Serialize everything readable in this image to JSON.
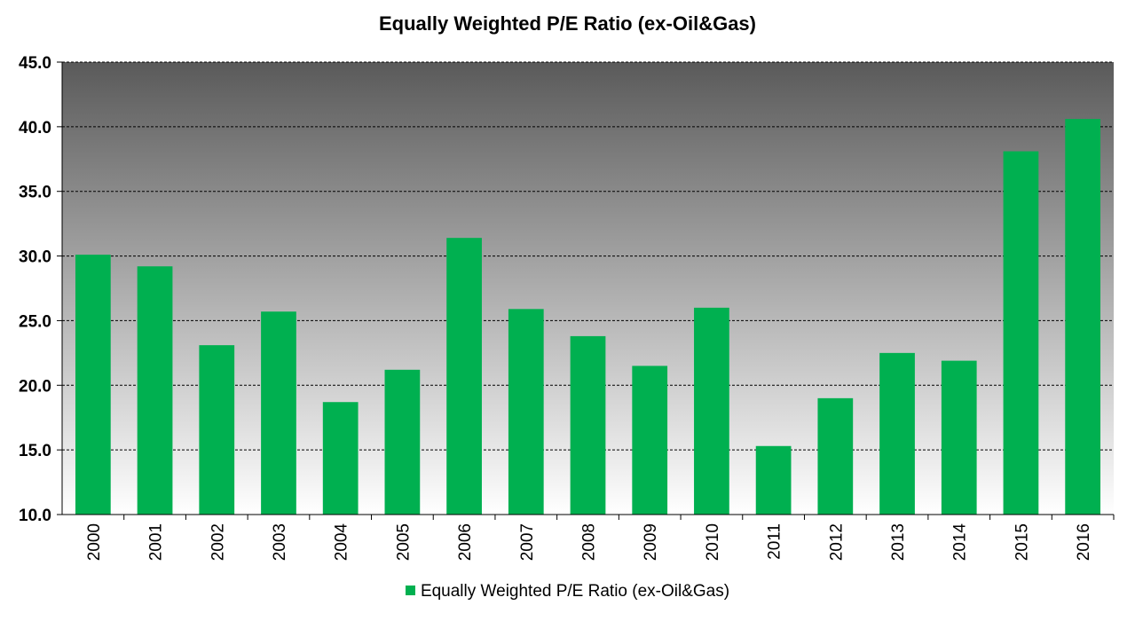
{
  "colors": {
    "bar": "#00B050",
    "plot_top": "#5a5a5a",
    "plot_bottom": "#ffffff",
    "grid": "#000000"
  },
  "chart_data": {
    "type": "bar",
    "title": "Equally Weighted P/E Ratio (ex-Oil&Gas)",
    "xlabel": "",
    "ylabel": "",
    "categories": [
      "2000",
      "2001",
      "2002",
      "2003",
      "2004",
      "2005",
      "2006",
      "2007",
      "2008",
      "2009",
      "2010",
      "2011",
      "2012",
      "2013",
      "2014",
      "2015",
      "2016"
    ],
    "series": [
      {
        "name": "Equally Weighted P/E Ratio (ex-Oil&Gas)",
        "values": [
          30.1,
          29.2,
          23.1,
          25.7,
          18.7,
          21.2,
          31.4,
          25.9,
          23.8,
          21.5,
          26.0,
          15.3,
          19.0,
          22.5,
          21.9,
          38.1,
          40.6
        ]
      }
    ],
    "ylim": [
      10,
      45
    ],
    "yticks": [
      "10.0",
      "15.0",
      "20.0",
      "25.0",
      "30.0",
      "35.0",
      "40.0",
      "45.0"
    ],
    "grid": true,
    "legend_position": "bottom"
  }
}
